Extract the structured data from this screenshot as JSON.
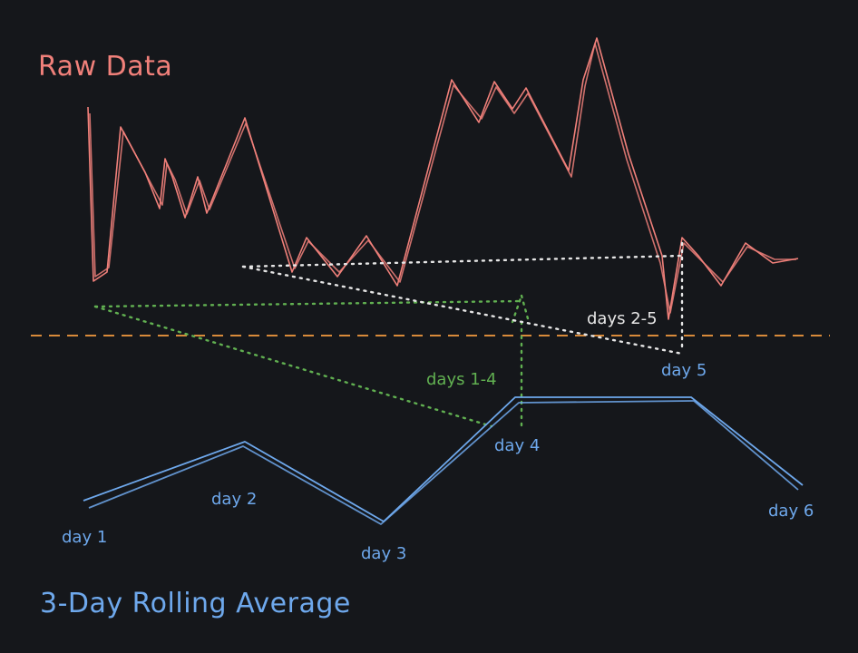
{
  "titles": {
    "raw": "Raw Data",
    "average": "3-Day Rolling Average"
  },
  "window_labels": {
    "days_1_4": "days 1-4",
    "days_2_5": "days 2-5"
  },
  "day_labels": [
    "day 1",
    "day 2",
    "day 3",
    "day 4",
    "day 5",
    "day 6"
  ],
  "colors": {
    "background": "#15171b",
    "raw": "#f0807a",
    "average": "#6ea8ec",
    "window_1_4": "#61b051",
    "window_2_5": "#e6e6e6",
    "threshold": "#d88a3a"
  }
}
